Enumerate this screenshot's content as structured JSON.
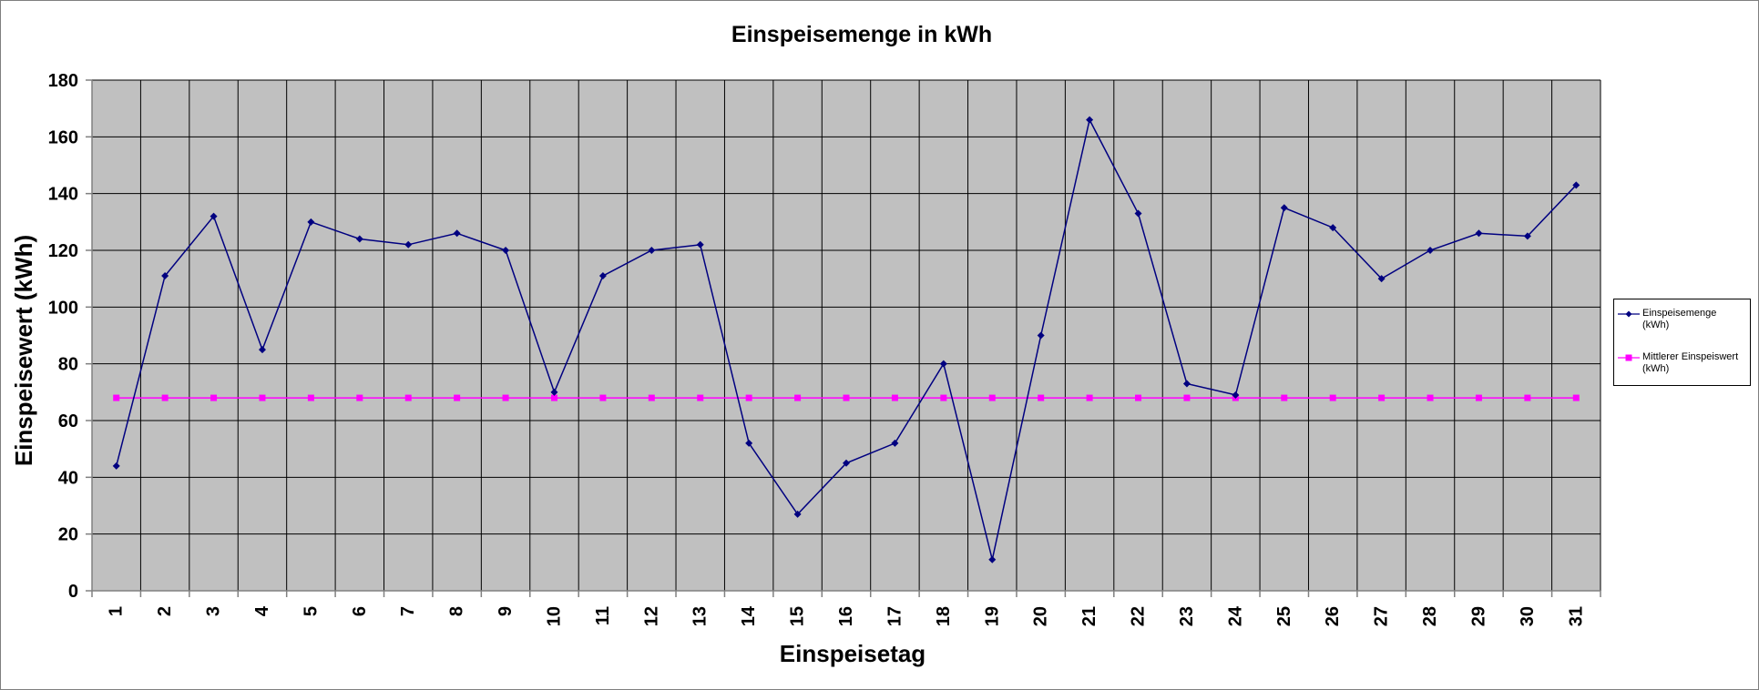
{
  "chart_data": {
    "type": "line",
    "title": "Einspeisemenge in kWh",
    "xlabel": "Einspeisetag",
    "ylabel": "Einspeisewert  (kWh)",
    "categories": [
      "1",
      "2",
      "3",
      "4",
      "5",
      "6",
      "7",
      "8",
      "9",
      "10",
      "11",
      "12",
      "13",
      "14",
      "15",
      "16",
      "17",
      "18",
      "19",
      "20",
      "21",
      "22",
      "23",
      "24",
      "25",
      "26",
      "27",
      "28",
      "29",
      "30",
      "31"
    ],
    "ylim": [
      0,
      180
    ],
    "yticks": [
      0,
      20,
      40,
      60,
      80,
      100,
      120,
      140,
      160,
      180
    ],
    "grid": true,
    "legend_position": "right",
    "plot_background": "#c0c0c0",
    "series": [
      {
        "name": "Einspeisemenge (kWh)",
        "color": "#000080",
        "marker": "diamond",
        "values": [
          44,
          111,
          132,
          85,
          130,
          124,
          122,
          126,
          120,
          70,
          111,
          120,
          122,
          52,
          27,
          45,
          52,
          80,
          11,
          90,
          166,
          133,
          73,
          69,
          135,
          128,
          110,
          120,
          126,
          125,
          143
        ]
      },
      {
        "name": "Mittlerer Einspeiswert (kWh)",
        "color": "#ff00ff",
        "marker": "square",
        "values": [
          68,
          68,
          68,
          68,
          68,
          68,
          68,
          68,
          68,
          68,
          68,
          68,
          68,
          68,
          68,
          68,
          68,
          68,
          68,
          68,
          68,
          68,
          68,
          68,
          68,
          68,
          68,
          68,
          68,
          68,
          68
        ]
      }
    ]
  },
  "legend": {
    "items": [
      {
        "line1": "Einspeisemenge",
        "line2": "(kWh)"
      },
      {
        "line1": "Mittlerer Einspeiswert",
        "line2": "(kWh)"
      }
    ]
  }
}
